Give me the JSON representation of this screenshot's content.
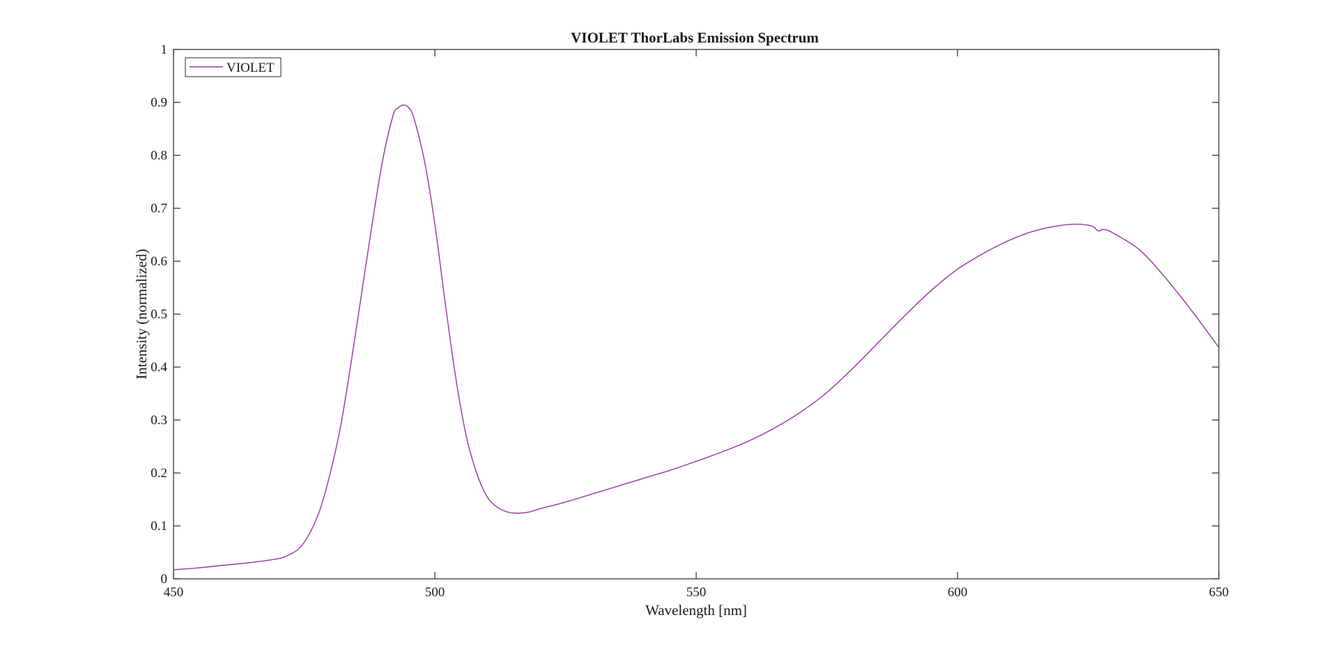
{
  "chart_data": {
    "type": "line",
    "title": "VIOLET ThorLabs Emission Spectrum",
    "xlabel": "Wavelength [nm]",
    "ylabel": "Intensity (normalized)",
    "xlim": [
      450,
      650
    ],
    "ylim": [
      0,
      1
    ],
    "xticks": [
      450,
      500,
      550,
      600,
      650
    ],
    "xtick_labels": [
      "450",
      "500",
      "550",
      "600",
      "650"
    ],
    "yticks": [
      0,
      0.1,
      0.2,
      0.3,
      0.4,
      0.5,
      0.6,
      0.7,
      0.8,
      0.9,
      1
    ],
    "ytick_labels": [
      "0",
      "0.1",
      "0.2",
      "0.3",
      "0.4",
      "0.5",
      "0.6",
      "0.7",
      "0.8",
      "0.9",
      "1"
    ],
    "grid": false,
    "legend_position": "top-left",
    "series": [
      {
        "name": "VIOLET",
        "color": "#9a2fa8",
        "x": [
          450,
          455,
          460,
          465,
          470,
          472,
          474,
          476,
          478,
          480,
          482,
          484,
          486,
          488,
          490,
          492,
          493,
          494,
          495,
          496,
          498,
          500,
          502,
          504,
          506,
          508,
          510,
          512,
          514,
          516,
          518,
          520,
          525,
          530,
          535,
          540,
          545,
          550,
          555,
          560,
          565,
          570,
          575,
          580,
          585,
          590,
          595,
          600,
          605,
          610,
          615,
          620,
          623,
          625,
          626,
          627,
          628,
          630,
          635,
          640,
          645,
          650
        ],
        "y": [
          0.017,
          0.021,
          0.026,
          0.031,
          0.038,
          0.045,
          0.057,
          0.085,
          0.13,
          0.2,
          0.29,
          0.41,
          0.54,
          0.67,
          0.79,
          0.875,
          0.89,
          0.895,
          0.89,
          0.87,
          0.79,
          0.67,
          0.52,
          0.38,
          0.27,
          0.2,
          0.155,
          0.135,
          0.126,
          0.124,
          0.126,
          0.132,
          0.145,
          0.16,
          0.175,
          0.19,
          0.205,
          0.222,
          0.24,
          0.26,
          0.285,
          0.315,
          0.352,
          0.398,
          0.448,
          0.498,
          0.545,
          0.585,
          0.615,
          0.64,
          0.658,
          0.668,
          0.67,
          0.668,
          0.665,
          0.657,
          0.66,
          0.652,
          0.62,
          0.566,
          0.504,
          0.437
        ]
      }
    ]
  }
}
